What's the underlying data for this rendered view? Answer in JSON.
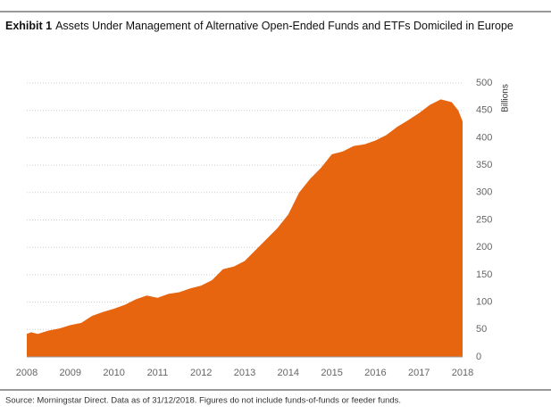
{
  "chart_data": {
    "type": "area",
    "exhibit": "Exhibit 1",
    "title": "Assets Under Management of Alternative Open-Ended Funds and ETFs Domiciled in Europe",
    "y_label": "Billions",
    "source": "Source: Morningstar Direct. Data as of 31/12/2018. Figures do not include funds-of-funds or feeder funds.",
    "color": "#e8650f",
    "x": [
      2008,
      2008.1,
      2008.25,
      2008.5,
      2008.75,
      2009,
      2009.25,
      2009.5,
      2009.75,
      2010,
      2010.25,
      2010.5,
      2010.75,
      2011,
      2011.25,
      2011.5,
      2011.75,
      2012,
      2012.25,
      2012.5,
      2012.75,
      2013,
      2013.25,
      2013.5,
      2013.75,
      2014,
      2014.25,
      2014.5,
      2014.75,
      2015,
      2015.25,
      2015.5,
      2015.75,
      2016,
      2016.25,
      2016.5,
      2016.75,
      2017,
      2017.25,
      2017.5,
      2017.75,
      2017.9,
      2018
    ],
    "values": [
      42,
      45,
      42,
      48,
      52,
      58,
      62,
      75,
      82,
      88,
      95,
      105,
      112,
      108,
      115,
      118,
      125,
      130,
      140,
      160,
      165,
      175,
      195,
      215,
      235,
      260,
      300,
      325,
      345,
      370,
      375,
      385,
      388,
      395,
      405,
      420,
      432,
      445,
      460,
      470,
      465,
      450,
      430
    ],
    "xlim": [
      2008,
      2018
    ],
    "xticks": [
      2008,
      2009,
      2010,
      2011,
      2012,
      2013,
      2014,
      2015,
      2016,
      2017,
      2018
    ],
    "ylim": [
      0,
      500
    ],
    "yticks": [
      0,
      50,
      100,
      150,
      200,
      250,
      300,
      350,
      400,
      450,
      500
    ],
    "grid": true
  }
}
